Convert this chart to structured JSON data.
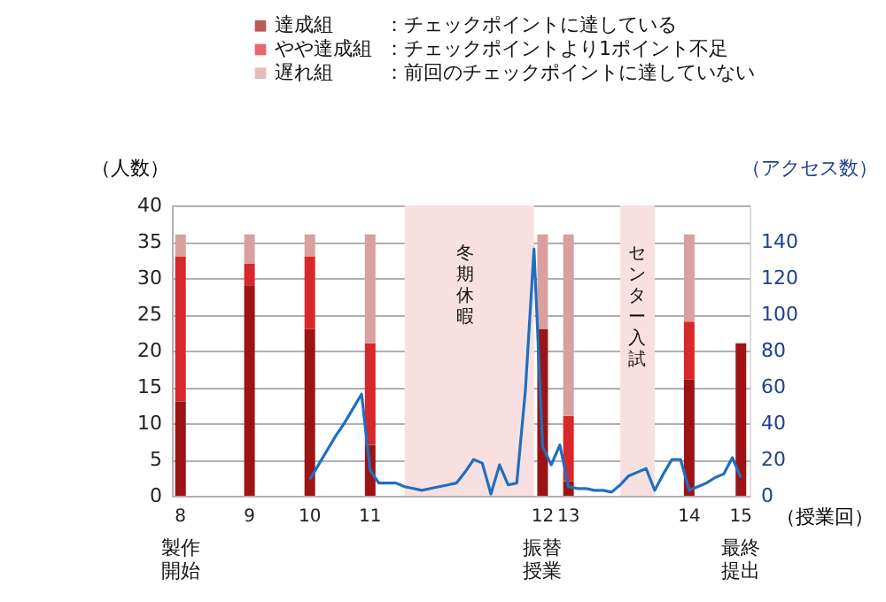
{
  "chart_data": {
    "type": "bar",
    "stacked": true,
    "categories": [
      "8",
      null,
      null,
      null,
      null,
      null,
      null,
      null,
      "9",
      null,
      null,
      null,
      null,
      null,
      null,
      "10",
      null,
      null,
      null,
      null,
      null,
      null,
      "11",
      null,
      null,
      null,
      null,
      null,
      null,
      null,
      null,
      null,
      null,
      null,
      null,
      null,
      null,
      null,
      null,
      null,
      null,
      null,
      "12",
      null,
      null,
      "13",
      null,
      null,
      null,
      null,
      null,
      null,
      null,
      null,
      null,
      null,
      null,
      null,
      null,
      "14",
      null,
      null,
      null,
      null,
      null,
      "15"
    ],
    "series": [
      {
        "name": "達成組",
        "color": "#9c1414",
        "values": [
          13,
          null,
          null,
          null,
          null,
          null,
          null,
          null,
          29,
          null,
          null,
          null,
          null,
          null,
          null,
          23,
          null,
          null,
          null,
          null,
          null,
          null,
          7,
          null,
          null,
          null,
          null,
          null,
          null,
          null,
          null,
          null,
          null,
          null,
          null,
          null,
          null,
          null,
          null,
          null,
          null,
          null,
          23,
          null,
          null,
          2,
          null,
          null,
          null,
          null,
          null,
          null,
          null,
          null,
          null,
          null,
          null,
          null,
          null,
          16,
          null,
          null,
          null,
          null,
          null,
          21
        ]
      },
      {
        "name": "やや達成組",
        "color": "#d8282a",
        "values": [
          20,
          null,
          null,
          null,
          null,
          null,
          null,
          null,
          3,
          null,
          null,
          null,
          null,
          null,
          null,
          10,
          null,
          null,
          null,
          null,
          null,
          null,
          14,
          null,
          null,
          null,
          null,
          null,
          null,
          null,
          null,
          null,
          null,
          null,
          null,
          null,
          null,
          null,
          null,
          null,
          null,
          null,
          0,
          null,
          null,
          9,
          null,
          null,
          null,
          null,
          null,
          null,
          null,
          null,
          null,
          null,
          null,
          null,
          null,
          8,
          null,
          null,
          null,
          null,
          null,
          0
        ]
      },
      {
        "name": "遅れ組",
        "color": "#d9a0a0",
        "values": [
          3,
          null,
          null,
          null,
          null,
          null,
          null,
          null,
          4,
          null,
          null,
          null,
          null,
          null,
          null,
          3,
          null,
          null,
          null,
          null,
          null,
          null,
          15,
          null,
          null,
          null,
          null,
          null,
          null,
          null,
          null,
          null,
          null,
          null,
          null,
          null,
          null,
          null,
          null,
          null,
          null,
          null,
          13,
          null,
          null,
          25,
          null,
          null,
          null,
          null,
          null,
          null,
          null,
          null,
          null,
          null,
          null,
          null,
          null,
          12,
          null,
          null,
          null,
          null,
          null,
          0
        ]
      },
      {
        "type": "line",
        "axis": "y2",
        "color": "#1f6fc0",
        "values": [
          null,
          null,
          null,
          null,
          null,
          null,
          null,
          null,
          null,
          null,
          null,
          null,
          null,
          null,
          null,
          9,
          17,
          25,
          33,
          40,
          48,
          56,
          14,
          7,
          7,
          7,
          5,
          4,
          3,
          4,
          5,
          6,
          7,
          13,
          20,
          18,
          1,
          17,
          6,
          7,
          58,
          136,
          27,
          17,
          28,
          5,
          4,
          4,
          3,
          3,
          2,
          6,
          11,
          13,
          15,
          3,
          12,
          20,
          20,
          3,
          5,
          7,
          10,
          12,
          21,
          10
        ]
      }
    ],
    "ylim": [
      0,
      40
    ],
    "yticks": [
      0,
      5,
      10,
      15,
      20,
      25,
      30,
      35,
      40
    ],
    "y2lim": [
      0,
      160
    ],
    "y2ticks": [
      0,
      20,
      40,
      60,
      80,
      100,
      120,
      140
    ],
    "ylabel": "（人数）",
    "y2label": "（アクセス数）",
    "xlabel": "（授業回）",
    "annotations": [
      "：前回のチェックポイントに達していない",
      "：チェックポイントより1ポイント不足",
      "：チェックポイントに達している",
      "冬期休暇",
      "センター入試",
      "製作開始",
      "振替授業",
      "最終提出"
    ],
    "grid": "y",
    "legend": "top"
  }
}
